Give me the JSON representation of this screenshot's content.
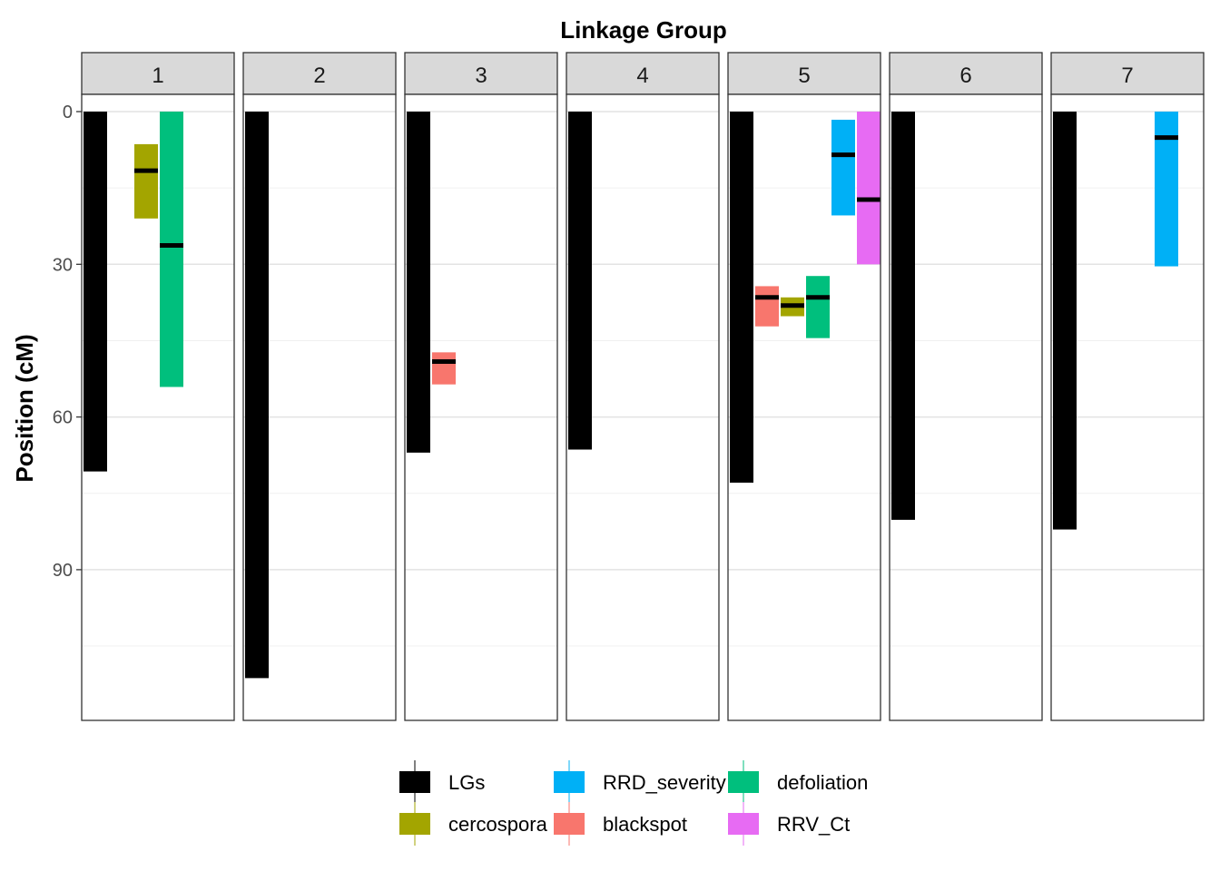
{
  "chart_data": {
    "type": "bar",
    "title": "Linkage Group",
    "ylabel": "Position (cM)",
    "xlabel": "",
    "ylim": [
      0,
      119
    ],
    "y_reversed": true,
    "y_ticks": [
      0,
      30,
      60,
      90
    ],
    "grid": true,
    "legend_position": "bottom",
    "facets": [
      "1",
      "2",
      "3",
      "4",
      "5",
      "6",
      "7"
    ],
    "series": [
      {
        "name": "LGs",
        "color": "#000000"
      },
      {
        "name": "blackspot",
        "color": "#F8766D"
      },
      {
        "name": "cercospora",
        "color": "#A3A500"
      },
      {
        "name": "defoliation",
        "color": "#00BF7D"
      },
      {
        "name": "RRD_severity",
        "color": "#00B0F6"
      },
      {
        "name": "RRV_Ct",
        "color": "#E76BF3"
      }
    ],
    "legend_order": [
      "LGs",
      "cercospora",
      "RRD_severity",
      "blackspot",
      "defoliation",
      "RRV_Ct"
    ],
    "intervals": [
      {
        "facet": "1",
        "trait": "LGs",
        "slot": 0,
        "start": 0,
        "end": 70.7
      },
      {
        "facet": "1",
        "trait": "cercospora",
        "slot": 2,
        "start": 6.4,
        "end": 21.0,
        "peak": 11.6
      },
      {
        "facet": "1",
        "trait": "defoliation",
        "slot": 3,
        "start": 0,
        "end": 54.1,
        "peak": 26.3
      },
      {
        "facet": "2",
        "trait": "LGs",
        "slot": 0,
        "start": 0,
        "end": 111.3
      },
      {
        "facet": "3",
        "trait": "LGs",
        "slot": 0,
        "start": 0,
        "end": 67.0
      },
      {
        "facet": "3",
        "trait": "blackspot",
        "slot": 1,
        "start": 47.3,
        "end": 53.6,
        "peak": 49.1
      },
      {
        "facet": "4",
        "trait": "LGs",
        "slot": 0,
        "start": 0,
        "end": 66.4
      },
      {
        "facet": "5",
        "trait": "LGs",
        "slot": 0,
        "start": 0,
        "end": 72.9
      },
      {
        "facet": "5",
        "trait": "blackspot",
        "slot": 1,
        "start": 34.3,
        "end": 42.2,
        "peak": 36.5
      },
      {
        "facet": "5",
        "trait": "cercospora",
        "slot": 2,
        "start": 36.5,
        "end": 40.2,
        "peak": 38.1
      },
      {
        "facet": "5",
        "trait": "defoliation",
        "slot": 3,
        "start": 32.3,
        "end": 44.5,
        "peak": 36.5
      },
      {
        "facet": "5",
        "trait": "RRD_severity",
        "slot": 4,
        "start": 1.6,
        "end": 20.4,
        "peak": 8.5
      },
      {
        "facet": "5",
        "trait": "RRV_Ct",
        "slot": 5,
        "start": 0,
        "end": 30.0,
        "peak": 17.3
      },
      {
        "facet": "6",
        "trait": "LGs",
        "slot": 0,
        "start": 0,
        "end": 80.2
      },
      {
        "facet": "7",
        "trait": "LGs",
        "slot": 0,
        "start": 0,
        "end": 82.1
      },
      {
        "facet": "7",
        "trait": "RRD_severity",
        "slot": 4,
        "start": 0,
        "end": 30.4,
        "peak": 5.1
      }
    ]
  }
}
